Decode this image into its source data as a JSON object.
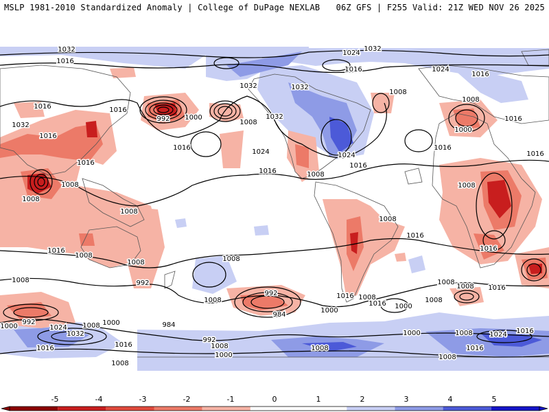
{
  "header": {
    "title": "MSLP 1981-2010 Standardized Anomaly | College of DuPage NEXLAB",
    "valid": "06Z GFS | F255 Valid: 21Z WED NOV 26 2025"
  },
  "colorbar": {
    "ticks": [
      "-5",
      "-4",
      "-3",
      "-2",
      "-1",
      "0",
      "1",
      "2",
      "3",
      "4",
      "5"
    ],
    "colors": [
      "#8b0000",
      "#c81e1e",
      "#e04a3c",
      "#ec7a68",
      "#f6b3a5",
      "#ffffff",
      "#ffffff",
      "#c8cff4",
      "#8e9be6",
      "#4c5ad8",
      "#1515c8"
    ]
  },
  "isobars": [
    {
      "text": "1032"
    },
    {
      "text": "1024"
    },
    {
      "text": "1032"
    },
    {
      "text": "1016"
    },
    {
      "text": "1016"
    },
    {
      "text": "1024"
    },
    {
      "text": "1016"
    },
    {
      "text": "1016"
    },
    {
      "text": "1016"
    },
    {
      "text": "1032"
    },
    {
      "text": "1032"
    },
    {
      "text": "1008"
    },
    {
      "text": "1008"
    },
    {
      "text": "1016"
    },
    {
      "text": "1016"
    },
    {
      "text": "1032"
    },
    {
      "text": "1016"
    },
    {
      "text": "992"
    },
    {
      "text": "1000"
    },
    {
      "text": "1008"
    },
    {
      "text": "1032"
    },
    {
      "text": "1016"
    },
    {
      "text": "1016"
    },
    {
      "text": "1024"
    },
    {
      "text": "1024"
    },
    {
      "text": "1016"
    },
    {
      "text": "1008"
    },
    {
      "text": "1016"
    },
    {
      "text": "1008"
    },
    {
      "text": "1000"
    },
    {
      "text": "1008"
    },
    {
      "text": "1016"
    },
    {
      "text": "1008"
    },
    {
      "text": "1008"
    },
    {
      "text": "1008"
    },
    {
      "text": "1008"
    },
    {
      "text": "1016"
    },
    {
      "text": "1016"
    },
    {
      "text": "1008"
    },
    {
      "text": "1008"
    },
    {
      "text": "1008"
    },
    {
      "text": "1016"
    },
    {
      "text": "1008"
    },
    {
      "text": "992"
    },
    {
      "text": "1016"
    },
    {
      "text": "1008"
    },
    {
      "text": "992"
    },
    {
      "text": "984"
    },
    {
      "text": "1008"
    },
    {
      "text": "1000"
    },
    {
      "text": "1016"
    },
    {
      "text": "1008"
    },
    {
      "text": "1008"
    },
    {
      "text": "1000"
    },
    {
      "text": "1016"
    },
    {
      "text": "992"
    },
    {
      "text": "1008"
    },
    {
      "text": "1000"
    },
    {
      "text": "1024"
    },
    {
      "text": "1032"
    },
    {
      "text": "1000"
    },
    {
      "text": "984"
    },
    {
      "text": "1016"
    },
    {
      "text": "1008"
    },
    {
      "text": "992"
    },
    {
      "text": "1000"
    },
    {
      "text": "1008"
    },
    {
      "text": "1000"
    },
    {
      "text": "1008"
    },
    {
      "text": "1024"
    },
    {
      "text": "1016"
    },
    {
      "text": "1016"
    },
    {
      "text": "1008"
    },
    {
      "text": "1008"
    },
    {
      "text": "1016"
    }
  ]
}
